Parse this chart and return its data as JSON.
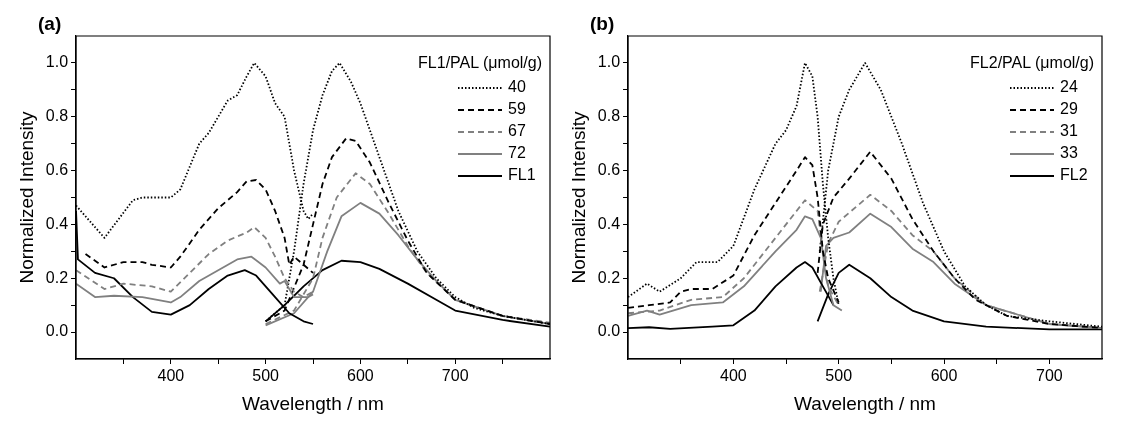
{
  "chart_data": [
    {
      "type": "line",
      "title": "(a)",
      "xlabel": "Wavelength / nm",
      "ylabel": "Normalized Intensity",
      "legend_title": "FL1/PAL (μmol/g)",
      "legend": "top right",
      "grid": false,
      "marker": "none",
      "xlim": [
        300,
        800
      ],
      "ylim": [
        -0.1,
        1.1
      ],
      "xticks": [
        {
          "value": 350,
          "label": null
        },
        400,
        {
          "value": 450,
          "label": null
        },
        500,
        {
          "value": 550,
          "label": null
        },
        600,
        {
          "value": 650,
          "label": null
        },
        700,
        {
          "value": 750,
          "label": null
        }
      ],
      "yticks": [
        {
          "value": 0,
          "label": "0.0"
        },
        {
          "value": 0.1,
          "label": null
        },
        {
          "value": 0.2,
          "label": "0.2"
        },
        {
          "value": 0.3,
          "label": null
        },
        {
          "value": 0.4,
          "label": "0.4"
        },
        {
          "value": 0.5,
          "label": null
        },
        {
          "value": 0.6,
          "label": "0.6"
        },
        {
          "value": 0.7,
          "label": null
        },
        {
          "value": 0.8,
          "label": "0.8"
        },
        {
          "value": 0.9,
          "label": null
        },
        {
          "value": 1,
          "label": "1.0"
        }
      ],
      "series": [
        {
          "name": "40",
          "color": "#000000",
          "line_style": "dotted",
          "x": [
            300,
            330,
            360,
            370,
            400,
            410,
            430,
            440,
            460,
            470,
            480,
            488,
            500,
            510,
            520,
            530,
            540,
            545,
            550
          ],
          "values": [
            0.47,
            0.35,
            0.49,
            0.5,
            0.5,
            0.53,
            0.7,
            0.74,
            0.86,
            0.88,
            0.95,
            1.0,
            0.95,
            0.85,
            0.8,
            0.6,
            0.45,
            0.42,
            0.44
          ]
        },
        {
          "name": "59",
          "color": "#000000",
          "line_style": "dashed",
          "x": [
            310,
            330,
            350,
            370,
            380,
            400,
            410,
            430,
            450,
            470,
            480,
            490,
            500,
            510,
            520,
            525,
            530,
            540,
            550
          ],
          "values": [
            0.29,
            0.24,
            0.26,
            0.26,
            0.25,
            0.24,
            0.28,
            0.38,
            0.46,
            0.52,
            0.56,
            0.565,
            0.53,
            0.45,
            0.35,
            0.25,
            0.28,
            0.25,
            0.22
          ]
        },
        {
          "name": "67",
          "color": "#808080",
          "line_style": "dashed",
          "x": [
            300,
            330,
            350,
            380,
            400,
            420,
            440,
            460,
            480,
            488,
            500,
            510,
            520,
            530,
            540,
            550
          ],
          "values": [
            0.23,
            0.16,
            0.18,
            0.17,
            0.15,
            0.22,
            0.29,
            0.34,
            0.37,
            0.39,
            0.35,
            0.28,
            0.2,
            0.15,
            0.13,
            0.15
          ]
        },
        {
          "name": "72",
          "color": "#808080",
          "line_style": "solid",
          "x": [
            300,
            320,
            340,
            370,
            400,
            410,
            430,
            450,
            470,
            485,
            500,
            515,
            520,
            530,
            545,
            550
          ],
          "values": [
            0.18,
            0.13,
            0.135,
            0.13,
            0.11,
            0.13,
            0.19,
            0.23,
            0.27,
            0.28,
            0.24,
            0.18,
            0.19,
            0.13,
            0.13,
            0.14
          ]
        },
        {
          "name": "FL1",
          "color": "#000000",
          "line_style": "solid",
          "x": [
            300,
            302,
            320,
            340,
            360,
            380,
            400,
            420,
            440,
            460,
            478,
            490,
            510,
            525,
            540,
            550
          ],
          "values": [
            0.45,
            0.27,
            0.22,
            0.2,
            0.13,
            0.075,
            0.065,
            0.1,
            0.16,
            0.21,
            0.23,
            0.21,
            0.13,
            0.07,
            0.04,
            0.03
          ]
        },
        {
          "color": "#000000",
          "line_style": "dotted",
          "x": [
            500,
            520,
            530,
            540,
            550,
            560,
            570,
            578,
            590,
            600,
            620,
            640,
            660,
            680,
            700,
            720,
            750,
            800
          ],
          "values": [
            0.04,
            0.1,
            0.3,
            0.55,
            0.75,
            0.88,
            0.97,
            1.0,
            0.93,
            0.85,
            0.65,
            0.45,
            0.3,
            0.2,
            0.13,
            0.09,
            0.06,
            0.03
          ]
        },
        {
          "color": "#000000",
          "line_style": "dashed",
          "x": [
            500,
            520,
            540,
            550,
            560,
            570,
            585,
            595,
            610,
            630,
            650,
            670,
            700,
            750,
            800
          ],
          "values": [
            0.04,
            0.08,
            0.25,
            0.4,
            0.55,
            0.65,
            0.72,
            0.71,
            0.63,
            0.48,
            0.34,
            0.22,
            0.12,
            0.06,
            0.03
          ]
        },
        {
          "color": "#808080",
          "line_style": "dashed",
          "x": [
            500,
            530,
            550,
            560,
            575,
            595,
            610,
            630,
            650,
            670,
            700,
            750,
            800
          ],
          "values": [
            0.03,
            0.08,
            0.2,
            0.35,
            0.5,
            0.59,
            0.55,
            0.44,
            0.32,
            0.22,
            0.12,
            0.06,
            0.035
          ]
        },
        {
          "color": "#808080",
          "line_style": "solid",
          "x": [
            500,
            530,
            550,
            565,
            580,
            600,
            620,
            640,
            660,
            680,
            700,
            750,
            800
          ],
          "values": [
            0.025,
            0.07,
            0.15,
            0.3,
            0.43,
            0.48,
            0.44,
            0.36,
            0.27,
            0.19,
            0.12,
            0.06,
            0.03
          ]
        },
        {
          "color": "#000000",
          "line_style": "solid",
          "x": [
            500,
            520,
            540,
            560,
            580,
            600,
            620,
            650,
            680,
            700,
            750,
            800
          ],
          "values": [
            0.04,
            0.1,
            0.17,
            0.23,
            0.265,
            0.26,
            0.235,
            0.18,
            0.12,
            0.08,
            0.045,
            0.02
          ]
        }
      ]
    },
    {
      "type": "line",
      "title": "(b)",
      "xlabel": "Wavelength / nm",
      "ylabel": "Normalized Intensity",
      "legend_title": "FL2/PAL (μmol/g)",
      "legend": "top right",
      "grid": false,
      "marker": "none",
      "xlim": [
        300,
        750
      ],
      "ylim": [
        -0.1,
        1.1
      ],
      "xticks": [
        {
          "value": 350,
          "label": null
        },
        400,
        {
          "value": 450,
          "label": null
        },
        500,
        {
          "value": 550,
          "label": null
        },
        600,
        {
          "value": 650,
          "label": null
        },
        700
      ],
      "yticks": [
        {
          "value": 0,
          "label": "0.0"
        },
        {
          "value": 0.1,
          "label": null
        },
        {
          "value": 0.2,
          "label": "0.2"
        },
        {
          "value": 0.3,
          "label": null
        },
        {
          "value": 0.4,
          "label": "0.4"
        },
        {
          "value": 0.5,
          "label": null
        },
        {
          "value": 0.6,
          "label": "0.6"
        },
        {
          "value": 0.7,
          "label": null
        },
        {
          "value": 0.8,
          "label": "0.8"
        },
        {
          "value": 0.9,
          "label": null
        },
        {
          "value": 1,
          "label": "1.0"
        }
      ],
      "series": [
        {
          "name": "24",
          "color": "#000000",
          "line_style": "dotted",
          "x": [
            300,
            318,
            330,
            350,
            365,
            385,
            400,
            420,
            440,
            450,
            460,
            468,
            475,
            480,
            485,
            490,
            495,
            500
          ],
          "values": [
            0.13,
            0.18,
            0.15,
            0.2,
            0.26,
            0.26,
            0.32,
            0.53,
            0.7,
            0.75,
            0.84,
            1.0,
            0.95,
            0.8,
            0.55,
            0.35,
            0.2,
            0.1
          ]
        },
        {
          "name": "29",
          "color": "#000000",
          "line_style": "dashed",
          "x": [
            300,
            320,
            340,
            350,
            360,
            380,
            400,
            420,
            440,
            460,
            468,
            475,
            480,
            485,
            490,
            500
          ],
          "values": [
            0.09,
            0.1,
            0.11,
            0.15,
            0.16,
            0.16,
            0.21,
            0.36,
            0.48,
            0.6,
            0.65,
            0.62,
            0.5,
            0.3,
            0.2,
            0.11
          ]
        },
        {
          "name": "31",
          "color": "#808080",
          "line_style": "dashed",
          "x": [
            300,
            330,
            360,
            390,
            410,
            440,
            460,
            468,
            480,
            485,
            490,
            500
          ],
          "values": [
            0.07,
            0.08,
            0.12,
            0.13,
            0.2,
            0.35,
            0.45,
            0.49,
            0.45,
            0.3,
            0.17,
            0.1
          ]
        },
        {
          "name": "33",
          "color": "#808080",
          "line_style": "solid",
          "x": [
            300,
            318,
            330,
            360,
            390,
            410,
            440,
            460,
            468,
            475,
            483,
            488,
            495,
            503
          ],
          "values": [
            0.06,
            0.08,
            0.065,
            0.1,
            0.11,
            0.17,
            0.3,
            0.38,
            0.43,
            0.42,
            0.35,
            0.2,
            0.1,
            0.08
          ]
        },
        {
          "name": "FL2",
          "color": "#000000",
          "line_style": "solid",
          "x": [
            300,
            320,
            340,
            380,
            400,
            420,
            440,
            460,
            468,
            475,
            485,
            495
          ],
          "values": [
            0.015,
            0.018,
            0.012,
            0.02,
            0.025,
            0.08,
            0.17,
            0.24,
            0.26,
            0.24,
            0.17,
            0.1
          ]
        },
        {
          "color": "#000000",
          "line_style": "dotted",
          "x": [
            482,
            490,
            500,
            510,
            525,
            540,
            560,
            580,
            600,
            620,
            640,
            660,
            700,
            750
          ],
          "values": [
            0.3,
            0.6,
            0.8,
            0.9,
            1.0,
            0.9,
            0.7,
            0.48,
            0.3,
            0.17,
            0.1,
            0.06,
            0.04,
            0.02
          ]
        },
        {
          "color": "#000000",
          "line_style": "dashed",
          "x": [
            480,
            485,
            495,
            510,
            530,
            550,
            570,
            590,
            610,
            630,
            660,
            700,
            750
          ],
          "values": [
            0.22,
            0.4,
            0.5,
            0.57,
            0.67,
            0.57,
            0.42,
            0.3,
            0.2,
            0.12,
            0.06,
            0.03,
            0.015
          ]
        },
        {
          "color": "#808080",
          "line_style": "dashed",
          "x": [
            482,
            490,
            500,
            530,
            550,
            570,
            590,
            610,
            640,
            700,
            750
          ],
          "values": [
            0.15,
            0.33,
            0.41,
            0.51,
            0.45,
            0.36,
            0.3,
            0.2,
            0.1,
            0.03,
            0.015
          ]
        },
        {
          "color": "#808080",
          "line_style": "solid",
          "x": [
            483,
            488,
            495,
            510,
            530,
            550,
            570,
            590,
            610,
            640,
            700,
            750
          ],
          "values": [
            0.15,
            0.32,
            0.35,
            0.37,
            0.44,
            0.39,
            0.31,
            0.26,
            0.18,
            0.1,
            0.03,
            0.015
          ]
        },
        {
          "color": "#000000",
          "line_style": "solid",
          "x": [
            480,
            490,
            500,
            510,
            530,
            550,
            570,
            600,
            640,
            700,
            750
          ],
          "values": [
            0.04,
            0.14,
            0.22,
            0.25,
            0.2,
            0.13,
            0.08,
            0.04,
            0.02,
            0.01,
            0.01
          ]
        }
      ]
    }
  ]
}
